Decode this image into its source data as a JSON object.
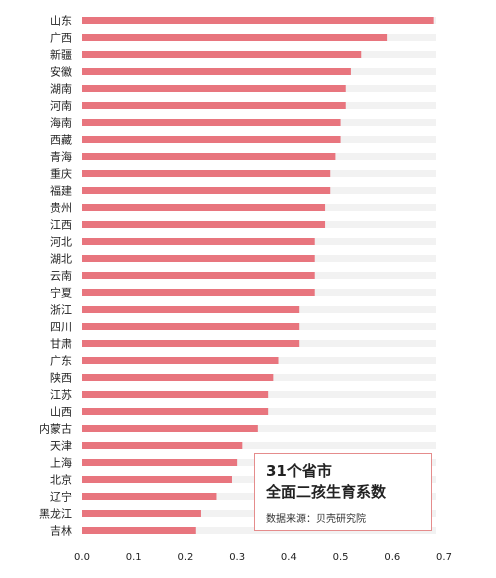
{
  "chart_data": {
    "type": "bar",
    "orientation": "horizontal",
    "title": "31个省市",
    "subtitle": "全面二孩生育系数",
    "source": "数据来源：贝壳研究院",
    "categories": [
      "山东",
      "广西",
      "新疆",
      "安徽",
      "湖南",
      "河南",
      "海南",
      "西藏",
      "青海",
      "重庆",
      "福建",
      "贵州",
      "江西",
      "河北",
      "湖北",
      "云南",
      "宁夏",
      "浙江",
      "四川",
      "甘肃",
      "广东",
      "陕西",
      "江苏",
      "山西",
      "内蒙古",
      "天津",
      "上海",
      "北京",
      "辽宁",
      "黑龙江",
      "吉林"
    ],
    "values": [
      0.68,
      0.59,
      0.54,
      0.52,
      0.51,
      0.51,
      0.5,
      0.5,
      0.49,
      0.48,
      0.48,
      0.47,
      0.47,
      0.45,
      0.45,
      0.45,
      0.45,
      0.42,
      0.42,
      0.42,
      0.38,
      0.37,
      0.36,
      0.36,
      0.34,
      0.31,
      0.3,
      0.29,
      0.26,
      0.23,
      0.22
    ],
    "xlim": [
      0,
      0.7
    ],
    "xticks": [
      "0.0",
      "0.1",
      "0.2",
      "0.3",
      "0.4",
      "0.5",
      "0.6",
      "0.7"
    ],
    "grid": false,
    "colors": {
      "bar": "#e8757e",
      "track": "#f2f2f2",
      "box_border": "#e58c8c"
    }
  }
}
